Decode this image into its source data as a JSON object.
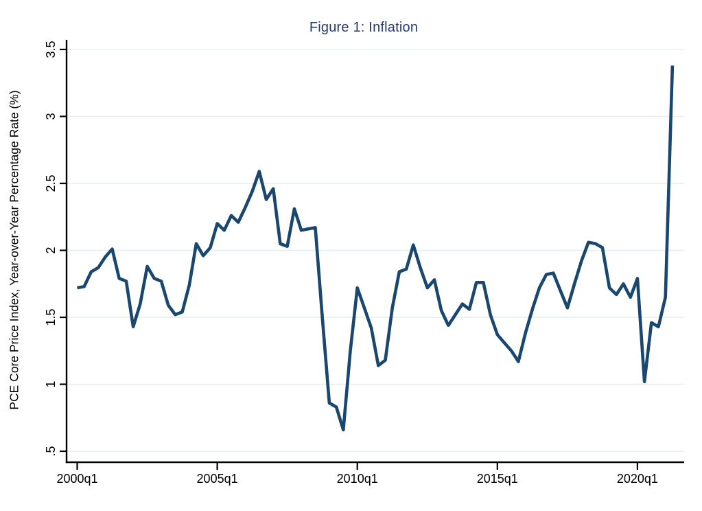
{
  "window": {
    "background": "#ffffff"
  },
  "chart_data": {
    "type": "line",
    "title": "Figure 1: Inflation",
    "xlabel": "",
    "ylabel": "PCE Core Price Index, Year-over-Year Percentage Rate (%)",
    "ylim": [
      0.5,
      3.5
    ],
    "x_range": [
      "2000q1",
      "2021q2"
    ],
    "grid": true,
    "legend_position": "none",
    "colors": {
      "line": "#1a476f",
      "title": "#253a6e",
      "grid": "#e3eef2",
      "axis": "#000000",
      "tick_label": "#000000"
    },
    "y_ticks": [
      {
        "value": 0.5,
        "label": ".5"
      },
      {
        "value": 1.0,
        "label": "1"
      },
      {
        "value": 1.5,
        "label": "1.5"
      },
      {
        "value": 2.0,
        "label": "2"
      },
      {
        "value": 2.5,
        "label": "2.5"
      },
      {
        "value": 3.0,
        "label": "3"
      },
      {
        "value": 3.5,
        "label": "3.5"
      }
    ],
    "x_ticks": [
      {
        "index": 0,
        "label": "2000q1"
      },
      {
        "index": 20,
        "label": "2005q1"
      },
      {
        "index": 40,
        "label": "2010q1"
      },
      {
        "index": 60,
        "label": "2015q1"
      },
      {
        "index": 80,
        "label": "2020q1"
      }
    ],
    "series": [
      {
        "name": "PCE Core Price Index, year-over-year % rate",
        "x": [
          "2000q1",
          "2000q2",
          "2000q3",
          "2000q4",
          "2001q1",
          "2001q2",
          "2001q3",
          "2001q4",
          "2002q1",
          "2002q2",
          "2002q3",
          "2002q4",
          "2003q1",
          "2003q2",
          "2003q3",
          "2003q4",
          "2004q1",
          "2004q2",
          "2004q3",
          "2004q4",
          "2005q1",
          "2005q2",
          "2005q3",
          "2005q4",
          "2006q1",
          "2006q2",
          "2006q3",
          "2006q4",
          "2007q1",
          "2007q2",
          "2007q3",
          "2007q4",
          "2008q1",
          "2008q2",
          "2008q3",
          "2008q4",
          "2009q1",
          "2009q2",
          "2009q3",
          "2009q4",
          "2010q1",
          "2010q2",
          "2010q3",
          "2010q4",
          "2011q1",
          "2011q2",
          "2011q3",
          "2011q4",
          "2012q1",
          "2012q2",
          "2012q3",
          "2012q4",
          "2013q1",
          "2013q2",
          "2013q3",
          "2013q4",
          "2014q1",
          "2014q2",
          "2014q3",
          "2014q4",
          "2015q1",
          "2015q2",
          "2015q3",
          "2015q4",
          "2016q1",
          "2016q2",
          "2016q3",
          "2016q4",
          "2017q1",
          "2017q2",
          "2017q3",
          "2017q4",
          "2018q1",
          "2018q2",
          "2018q3",
          "2018q4",
          "2019q1",
          "2019q2",
          "2019q3",
          "2019q4",
          "2020q1",
          "2020q2",
          "2020q3",
          "2020q4",
          "2021q1",
          "2021q2"
        ],
        "values": [
          1.72,
          1.73,
          1.84,
          1.87,
          1.95,
          2.01,
          1.79,
          1.77,
          1.43,
          1.6,
          1.88,
          1.79,
          1.77,
          1.59,
          1.52,
          1.54,
          1.74,
          2.05,
          1.96,
          2.02,
          2.2,
          2.15,
          2.26,
          2.21,
          2.32,
          2.44,
          2.59,
          2.38,
          2.46,
          2.05,
          2.03,
          2.31,
          2.15,
          2.16,
          2.17,
          1.5,
          0.86,
          0.83,
          0.66,
          1.25,
          1.72,
          1.57,
          1.42,
          1.14,
          1.18,
          1.57,
          1.84,
          1.86,
          2.04,
          1.87,
          1.72,
          1.78,
          1.55,
          1.44,
          1.52,
          1.6,
          1.56,
          1.76,
          1.76,
          1.52,
          1.37,
          1.31,
          1.25,
          1.17,
          1.38,
          1.56,
          1.72,
          1.82,
          1.83,
          1.7,
          1.57,
          1.75,
          1.92,
          2.06,
          2.05,
          2.02,
          1.72,
          1.67,
          1.75,
          1.65,
          1.79,
          1.02,
          1.46,
          1.43,
          1.65,
          3.38
        ]
      }
    ]
  }
}
